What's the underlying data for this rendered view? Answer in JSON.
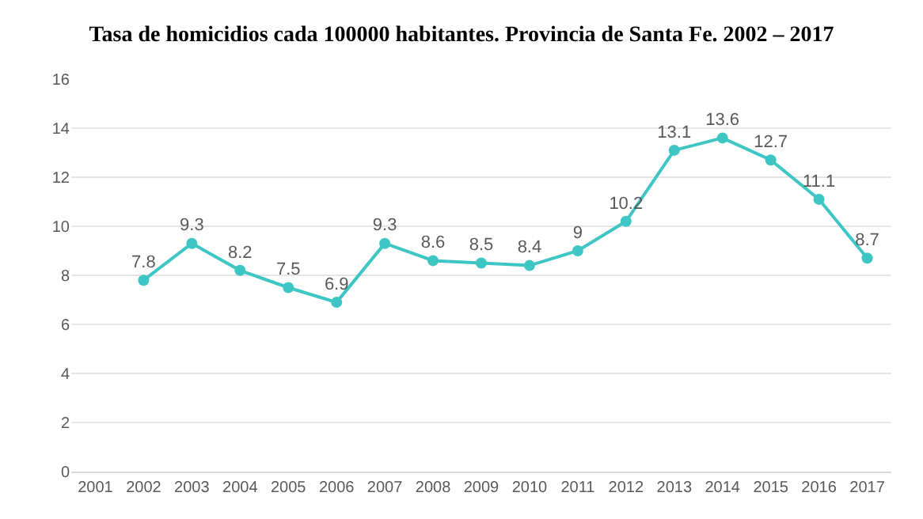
{
  "chart_data": {
    "type": "line",
    "title": "Tasa de homicidios cada 100000 habitantes. Provincia de Santa Fe. 2002 – 2017",
    "categories": [
      "2001",
      "2002",
      "2003",
      "2004",
      "2005",
      "2006",
      "2007",
      "2008",
      "2009",
      "2010",
      "2011",
      "2012",
      "2013",
      "2014",
      "2015",
      "2016",
      "2017"
    ],
    "series": [
      {
        "color": "#3ec6c4",
        "values": [
          null,
          7.8,
          9.3,
          8.2,
          7.5,
          6.9,
          9.3,
          8.6,
          8.5,
          8.4,
          9,
          10.2,
          13.1,
          13.6,
          12.7,
          11.1,
          8.7
        ]
      }
    ],
    "ylim": [
      0,
      16
    ],
    "yticks": [
      0,
      2,
      4,
      6,
      8,
      10,
      12,
      14,
      16
    ],
    "grid": "y",
    "marker": "circle",
    "line_style": "solid",
    "data_labels": true
  }
}
